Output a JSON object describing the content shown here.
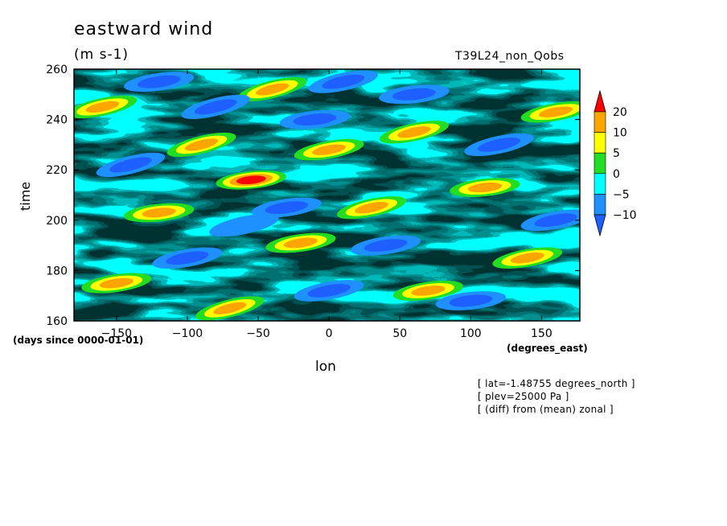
{
  "title": "eastward wind",
  "units": "(m s-1)",
  "run_id": "T39L24_non_Qobs",
  "notes": [
    "[ lat=-1.48755 degrees_north ]",
    "[ plev=25000 Pa ]",
    "[ (diff) from (mean) zonal ]"
  ],
  "chart_data": {
    "type": "heatmap",
    "title": "eastward wind",
    "xlabel": "lon",
    "ylabel": "time",
    "x_units": "(degrees_east)",
    "y_units": "(days since 0000-01-01)",
    "xlim": [
      -180,
      177
    ],
    "ylim": [
      160,
      260
    ],
    "x_ticks": [
      -150,
      -100,
      -50,
      0,
      50,
      100,
      150
    ],
    "y_ticks": [
      160,
      180,
      200,
      220,
      240,
      260
    ],
    "colorbar": {
      "levels": [
        -10,
        -5,
        0,
        5,
        10,
        20
      ],
      "colors": [
        "#1e5fff",
        "#1e90ff",
        "#00ffff",
        "#22dd22",
        "#ffff00",
        "#ffa500",
        "#ff0000"
      ]
    },
    "features": [
      {
        "lon": -55,
        "time": 216,
        "value": 22
      },
      {
        "lon": -20,
        "time": 191,
        "value": 18
      },
      {
        "lon": 160,
        "time": 243,
        "value": 18
      },
      {
        "lon": -160,
        "time": 245,
        "value": 15
      },
      {
        "lon": -90,
        "time": 230,
        "value": 13
      },
      {
        "lon": -120,
        "time": 203,
        "value": 12
      },
      {
        "lon": 70,
        "time": 172,
        "value": 13
      },
      {
        "lon": 140,
        "time": 185,
        "value": 14
      },
      {
        "lon": 30,
        "time": 205,
        "value": 12
      },
      {
        "lon": -40,
        "time": 252,
        "value": 13
      },
      {
        "lon": 110,
        "time": 213,
        "value": 12
      },
      {
        "lon": -150,
        "time": 175,
        "value": 11
      },
      {
        "lon": 0,
        "time": 228,
        "value": 10
      },
      {
        "lon": 60,
        "time": 235,
        "value": 11
      },
      {
        "lon": -70,
        "time": 165,
        "value": 12
      },
      {
        "lon": -10,
        "time": 240,
        "value": -14
      },
      {
        "lon": 40,
        "time": 190,
        "value": -14
      },
      {
        "lon": -100,
        "time": 185,
        "value": -13
      },
      {
        "lon": 120,
        "time": 230,
        "value": -13
      },
      {
        "lon": -140,
        "time": 222,
        "value": -12
      },
      {
        "lon": 100,
        "time": 168,
        "value": -14
      },
      {
        "lon": -30,
        "time": 205,
        "value": -12
      },
      {
        "lon": 160,
        "time": 200,
        "value": -12
      },
      {
        "lon": 10,
        "time": 255,
        "value": -11
      },
      {
        "lon": -80,
        "time": 245,
        "value": -11
      },
      {
        "lon": 60,
        "time": 250,
        "value": -12
      },
      {
        "lon": -120,
        "time": 255,
        "value": -11
      },
      {
        "lon": 0,
        "time": 172,
        "value": -11
      },
      {
        "lon": -60,
        "time": 198,
        "value": -10
      }
    ]
  }
}
